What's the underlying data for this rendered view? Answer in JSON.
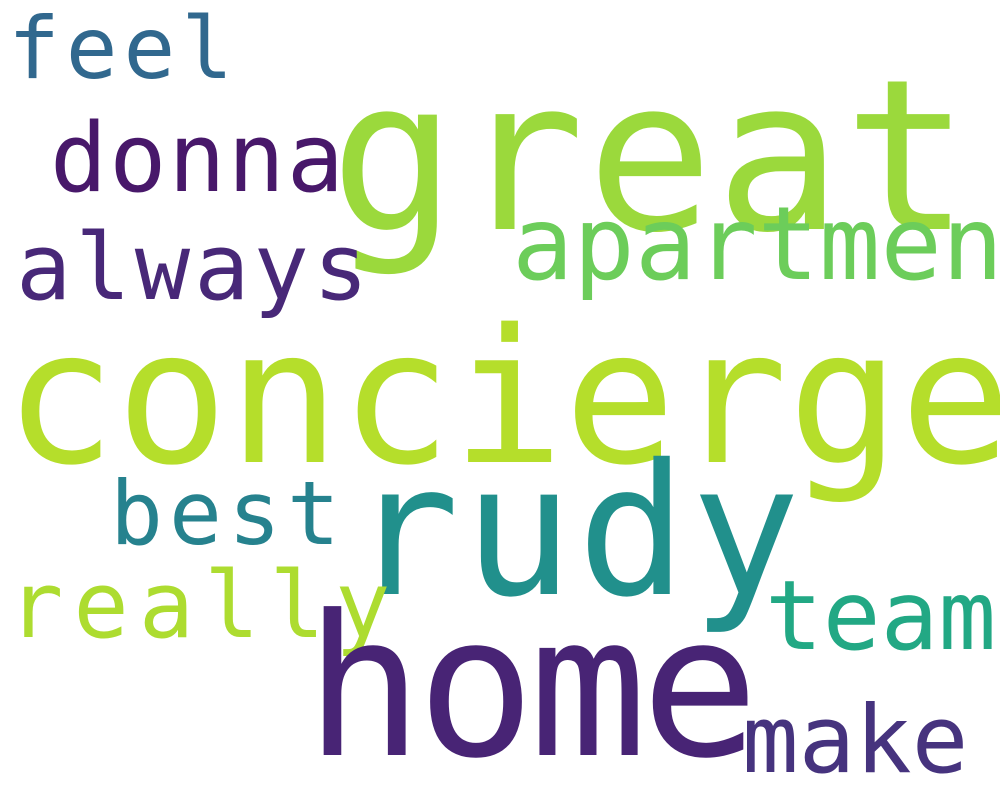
{
  "words": [
    {
      "key": "feel",
      "text": "feel",
      "color": "#31688e"
    },
    {
      "key": "great",
      "text": "great",
      "color": "#9bd93c"
    },
    {
      "key": "donna",
      "text": "donna",
      "color": "#48186a"
    },
    {
      "key": "apartment",
      "text": "apartment",
      "color": "#6ccd5a"
    },
    {
      "key": "always",
      "text": "always",
      "color": "#482878"
    },
    {
      "key": "concierge",
      "text": "concierge",
      "color": "#b5de2b"
    },
    {
      "key": "best",
      "text": "best",
      "color": "#26828e"
    },
    {
      "key": "rudy",
      "text": "rudy",
      "color": "#21908c"
    },
    {
      "key": "really",
      "text": "really",
      "color": "#addc30"
    },
    {
      "key": "team",
      "text": "team",
      "color": "#22a884"
    },
    {
      "key": "home",
      "text": "home",
      "color": "#482475"
    },
    {
      "key": "make",
      "text": "make",
      "color": "#46337e"
    }
  ]
}
